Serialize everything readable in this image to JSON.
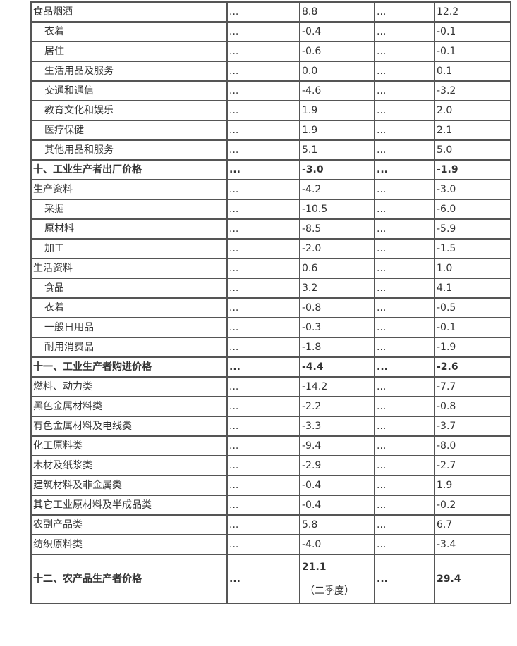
{
  "rows": [
    {
      "label": "食品烟酒",
      "c1": "...",
      "c2": "8.8",
      "c3": "...",
      "c4": "12.2",
      "indent": false,
      "bold": false
    },
    {
      "label": "衣着",
      "c1": "...",
      "c2": "-0.4",
      "c3": "...",
      "c4": "-0.1",
      "indent": true,
      "bold": false
    },
    {
      "label": "居住",
      "c1": "...",
      "c2": "-0.6",
      "c3": "...",
      "c4": "-0.1",
      "indent": true,
      "bold": false
    },
    {
      "label": "生活用品及服务",
      "c1": "...",
      "c2": "0.0",
      "c3": "...",
      "c4": "0.1",
      "indent": true,
      "bold": false
    },
    {
      "label": "交通和通信",
      "c1": "...",
      "c2": "-4.6",
      "c3": "...",
      "c4": "-3.2",
      "indent": true,
      "bold": false
    },
    {
      "label": "教育文化和娱乐",
      "c1": "...",
      "c2": "1.9",
      "c3": "...",
      "c4": "2.0",
      "indent": true,
      "bold": false
    },
    {
      "label": "医疗保健",
      "c1": "...",
      "c2": "1.9",
      "c3": "...",
      "c4": "2.1",
      "indent": true,
      "bold": false
    },
    {
      "label": "其他用品和服务",
      "c1": "...",
      "c2": "5.1",
      "c3": "...",
      "c4": "5.0",
      "indent": true,
      "bold": false
    },
    {
      "label": "十、工业生产者出厂价格",
      "c1": "...",
      "c2": "-3.0",
      "c3": "...",
      "c4": "-1.9",
      "indent": false,
      "bold": true
    },
    {
      "label": "生产资料",
      "c1": "...",
      "c2": "-4.2",
      "c3": "...",
      "c4": "-3.0",
      "indent": false,
      "bold": false
    },
    {
      "label": "采掘",
      "c1": "...",
      "c2": "-10.5",
      "c3": "...",
      "c4": "-6.0",
      "indent": true,
      "bold": false
    },
    {
      "label": "原材料",
      "c1": "...",
      "c2": "-8.5",
      "c3": "...",
      "c4": "-5.9",
      "indent": true,
      "bold": false
    },
    {
      "label": "加工",
      "c1": "...",
      "c2": "-2.0",
      "c3": "...",
      "c4": "-1.5",
      "indent": true,
      "bold": false
    },
    {
      "label": "生活资料",
      "c1": "...",
      "c2": "0.6",
      "c3": "...",
      "c4": "1.0",
      "indent": false,
      "bold": false
    },
    {
      "label": "食品",
      "c1": "...",
      "c2": "3.2",
      "c3": "...",
      "c4": "4.1",
      "indent": true,
      "bold": false
    },
    {
      "label": "衣着",
      "c1": "...",
      "c2": "-0.8",
      "c3": "...",
      "c4": "-0.5",
      "indent": true,
      "bold": false
    },
    {
      "label": "一般日用品",
      "c1": "...",
      "c2": "-0.3",
      "c3": "...",
      "c4": "-0.1",
      "indent": true,
      "bold": false
    },
    {
      "label": "耐用消费品",
      "c1": "...",
      "c2": "-1.8",
      "c3": "...",
      "c4": "-1.9",
      "indent": true,
      "bold": false
    },
    {
      "label": "十一、工业生产者购进价格",
      "c1": "...",
      "c2": "-4.4",
      "c3": "...",
      "c4": "-2.6",
      "indent": false,
      "bold": true
    },
    {
      "label": "燃料、动力类",
      "c1": "...",
      "c2": "-14.2",
      "c3": "...",
      "c4": "-7.7",
      "indent": false,
      "bold": false
    },
    {
      "label": "黑色金属材料类",
      "c1": "...",
      "c2": "-2.2",
      "c3": "...",
      "c4": "-0.8",
      "indent": false,
      "bold": false
    },
    {
      "label": "有色金属材料及电线类",
      "c1": "...",
      "c2": "-3.3",
      "c3": "...",
      "c4": "-3.7",
      "indent": false,
      "bold": false
    },
    {
      "label": "化工原料类",
      "c1": "...",
      "c2": "-9.4",
      "c3": "...",
      "c4": "-8.0",
      "indent": false,
      "bold": false
    },
    {
      "label": "木材及纸浆类",
      "c1": "...",
      "c2": "-2.9",
      "c3": "...",
      "c4": "-2.7",
      "indent": false,
      "bold": false
    },
    {
      "label": "建筑材料及非金属类",
      "c1": "...",
      "c2": "-0.4",
      "c3": "...",
      "c4": "1.9",
      "indent": false,
      "bold": false
    },
    {
      "label": "其它工业原材料及半成品类",
      "c1": "...",
      "c2": "-0.4",
      "c3": "...",
      "c4": "-0.2",
      "indent": false,
      "bold": false
    },
    {
      "label": "农副产品类",
      "c1": "...",
      "c2": "5.8",
      "c3": "...",
      "c4": "6.7",
      "indent": false,
      "bold": false
    },
    {
      "label": "纺织原料类",
      "c1": "...",
      "c2": "-4.0",
      "c3": "...",
      "c4": "-3.4",
      "indent": false,
      "bold": false
    }
  ],
  "last_row": {
    "label": "十二、农产品生产者价格",
    "c1": "...",
    "c2": "21.1",
    "c2_note": "（二季度）",
    "c3": "...",
    "c4": "29.4"
  }
}
